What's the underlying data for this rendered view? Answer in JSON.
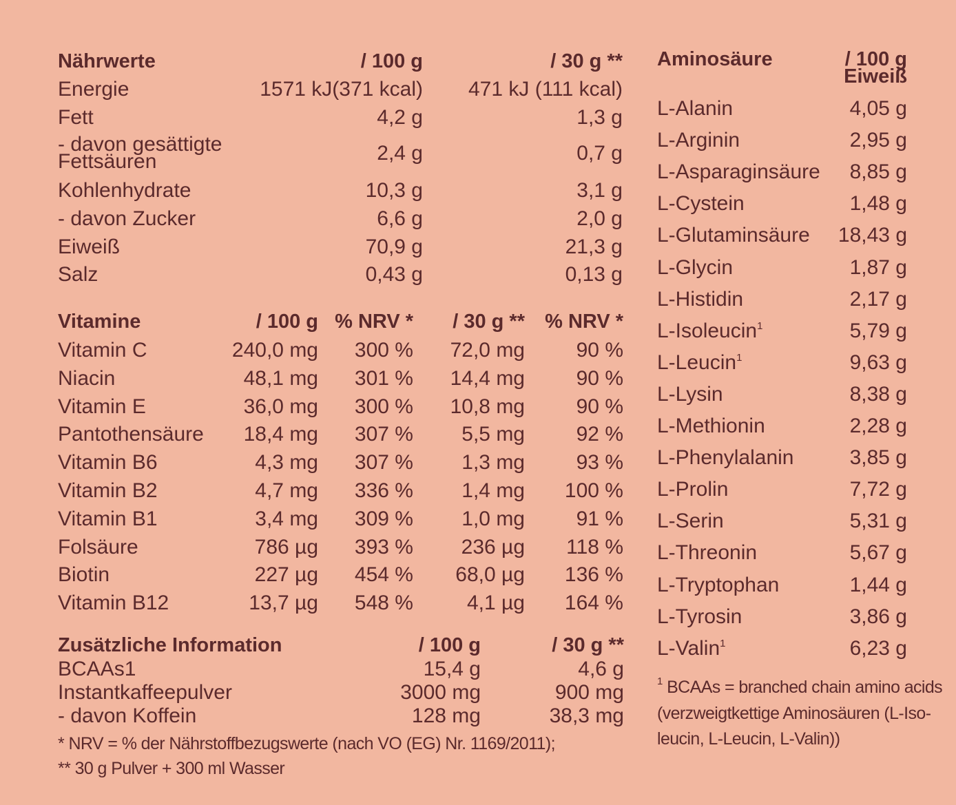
{
  "naehrwerte": {
    "header": [
      "Nährwerte",
      "/ 100 g",
      "/ 30 g **"
    ],
    "rows": [
      {
        "label": "Energie",
        "v100": "1571 kJ(371 kcal)",
        "v30": "471 kJ (111 kcal)"
      },
      {
        "label": "Fett",
        "v100": "4,2 g",
        "v30": "1,3 g"
      },
      {
        "label": "- davon gesättigte Fettsäuren",
        "label_l1": "- davon gesättigte",
        "label_l2": "Fettsäuren",
        "v100": "2,4 g",
        "v30": "0,7 g"
      },
      {
        "label": "Kohlenhydrate",
        "v100": "10,3 g",
        "v30": "3,1 g"
      },
      {
        "label": "- davon Zucker",
        "v100": "6,6 g",
        "v30": "2,0 g"
      },
      {
        "label": "Eiweiß",
        "v100": "70,9 g",
        "v30": "21,3 g"
      },
      {
        "label": "Salz",
        "v100": "0,43 g",
        "v30": "0,13 g"
      }
    ]
  },
  "vitamine": {
    "header": [
      "Vitamine",
      "/ 100 g",
      "% NRV *",
      "/ 30 g **",
      "% NRV *"
    ],
    "rows": [
      {
        "label": "Vitamin C",
        "v100": "240,0 mg",
        "nrv100": "300 %",
        "v30": "72,0 mg",
        "nrv30": "90 %"
      },
      {
        "label": "Niacin",
        "v100": "48,1 mg",
        "nrv100": "301 %",
        "v30": "14,4 mg",
        "nrv30": "90 %"
      },
      {
        "label": "Vitamin E",
        "v100": "36,0 mg",
        "nrv100": "300 %",
        "v30": "10,8 mg",
        "nrv30": "90 %"
      },
      {
        "label": "Pantothensäure",
        "v100": "18,4 mg",
        "nrv100": "307 %",
        "v30": "5,5 mg",
        "nrv30": "92 %"
      },
      {
        "label": "Vitamin B6",
        "v100": "4,3 mg",
        "nrv100": "307 %",
        "v30": "1,3 mg",
        "nrv30": "93 %"
      },
      {
        "label": "Vitamin B2",
        "v100": "4,7 mg",
        "nrv100": "336 %",
        "v30": "1,4 mg",
        "nrv30": "100 %"
      },
      {
        "label": "Vitamin B1",
        "v100": "3,4 mg",
        "nrv100": "309 %",
        "v30": "1,0 mg",
        "nrv30": "91 %"
      },
      {
        "label": "Folsäure",
        "v100": "786 µg",
        "nrv100": "393 %",
        "v30": "236 µg",
        "nrv30": "118 %"
      },
      {
        "label": "Biotin",
        "v100": "227 µg",
        "nrv100": "454 %",
        "v30": "68,0 µg",
        "nrv30": "136 %"
      },
      {
        "label": "Vitamin B12",
        "v100": "13,7 µg",
        "nrv100": "548 %",
        "v30": "4,1 µg",
        "nrv30": "164 %"
      }
    ]
  },
  "zusatz": {
    "header": [
      "Zusätzliche Information",
      "/ 100 g",
      "/ 30 g **"
    ],
    "rows": [
      {
        "label": "BCAAs1",
        "v100": "15,4 g",
        "v30": "4,6 g"
      },
      {
        "label": "Instantkaffeepulver",
        "v100": "3000 mg",
        "v30": "900 mg"
      },
      {
        "label": "- davon Koffein",
        "v100": "128 mg",
        "v30": "38,3 mg"
      }
    ]
  },
  "footnotes_left": [
    "* NRV = % der Nährstoffbezugswerte (nach VO (EG) Nr. 1169/2011);",
    "** 30 g Pulver + 300 ml Wasser"
  ],
  "amino": {
    "header": [
      "Aminosäure",
      "/ 100 g",
      "Eiweiß"
    ],
    "superscript": "1",
    "rows": [
      {
        "label": "L-Alanin",
        "value": "4,05 g"
      },
      {
        "label": "L-Arginin",
        "value": "2,95 g"
      },
      {
        "label": "L-Asparaginsäure",
        "value": "8,85 g"
      },
      {
        "label": "L-Cystein",
        "value": "1,48 g"
      },
      {
        "label": "L-Glutaminsäure",
        "value": "18,43 g"
      },
      {
        "label": "L-Glycin",
        "value": "1,87 g"
      },
      {
        "label": "L-Histidin",
        "value": "2,17 g"
      },
      {
        "label": "L-Isoleucin",
        "value": "5,79 g"
      },
      {
        "label": "L-Leucin",
        "value": "9,63 g"
      },
      {
        "label": "L-Lysin",
        "value": "8,38 g"
      },
      {
        "label": "L-Methionin",
        "value": "2,28 g"
      },
      {
        "label": "L-Phenylalanin",
        "value": "3,85 g"
      },
      {
        "label": "L-Prolin",
        "value": "7,72 g"
      },
      {
        "label": "L-Serin",
        "value": "5,31 g"
      },
      {
        "label": "L-Threonin",
        "value": "5,67 g"
      },
      {
        "label": "L-Tryptophan",
        "value": "1,44 g"
      },
      {
        "label": "L-Tyrosin",
        "value": "3,86 g"
      },
      {
        "label": "L-Valin",
        "value": "6,23 g"
      }
    ]
  },
  "footnote_right": {
    "mark": "1",
    "lines": [
      "BCAAs = branched chain amino acids",
      "(verzweigtkettige Aminosäuren (L-Iso-",
      "leucin, L-Leucin, L-Valin))"
    ]
  }
}
